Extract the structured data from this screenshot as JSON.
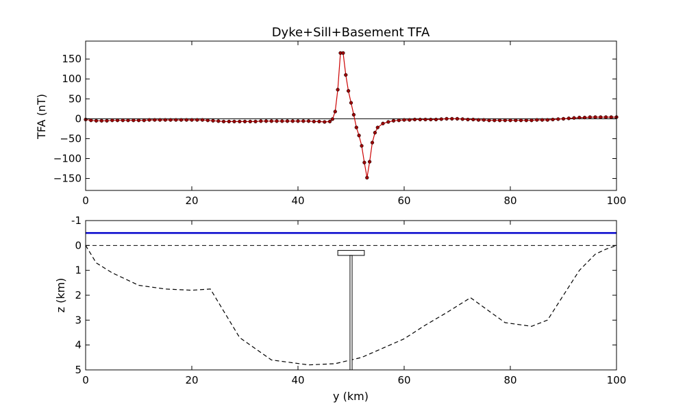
{
  "chart_data": [
    {
      "type": "line",
      "title": "Dyke+Sill+Basement TFA",
      "xlabel": "",
      "ylabel": "TFA (nT)",
      "xlim": [
        0,
        100
      ],
      "ylim": [
        -180,
        195
      ],
      "xticks": [
        0,
        20,
        40,
        60,
        80,
        100
      ],
      "yticks": [
        150,
        100,
        50,
        0,
        -50,
        -100,
        -150
      ],
      "grid": false,
      "series": [
        {
          "color": "#cc0000",
          "marker_color": "#990000",
          "x": [
            0,
            1,
            2,
            3,
            4,
            5,
            6,
            7,
            8,
            9,
            10,
            11,
            12,
            13,
            14,
            15,
            16,
            17,
            18,
            19,
            20,
            21,
            22,
            23,
            24,
            25,
            26,
            27,
            28,
            29,
            30,
            31,
            32,
            33,
            34,
            35,
            36,
            37,
            38,
            39,
            40,
            41,
            42,
            43,
            44,
            45,
            46,
            46.5,
            47,
            47.5,
            48,
            48.5,
            49,
            49.5,
            50,
            50.5,
            51,
            51.5,
            52,
            52.5,
            53,
            53.5,
            54,
            54.5,
            55,
            56,
            57,
            58,
            59,
            60,
            61,
            62,
            63,
            64,
            65,
            66,
            67,
            68,
            69,
            70,
            71,
            72,
            73,
            74,
            75,
            76,
            77,
            78,
            79,
            80,
            81,
            82,
            83,
            84,
            85,
            86,
            87,
            88,
            89,
            90,
            91,
            92,
            93,
            94,
            95,
            96,
            97,
            98,
            99,
            100
          ],
          "y": [
            -2,
            -4,
            -5,
            -5,
            -5,
            -4,
            -4,
            -4,
            -4,
            -4,
            -4,
            -4,
            -3,
            -3,
            -3,
            -3,
            -3,
            -3,
            -3,
            -3,
            -3,
            -3,
            -3,
            -4,
            -5,
            -6,
            -7,
            -7,
            -7,
            -7,
            -7,
            -7,
            -7,
            -6,
            -6,
            -6,
            -6,
            -6,
            -6,
            -6,
            -6,
            -6,
            -6,
            -7,
            -7,
            -8,
            -7,
            -1,
            18,
            73,
            165,
            165,
            110,
            70,
            40,
            10,
            -22,
            -42,
            -68,
            -110,
            -148,
            -108,
            -60,
            -35,
            -22,
            -12,
            -8,
            -5,
            -4,
            -3,
            -3,
            -2,
            -2,
            -2,
            -2,
            -2,
            -1,
            0,
            0,
            0,
            -1,
            -2,
            -2,
            -3,
            -3,
            -4,
            -4,
            -4,
            -4,
            -4,
            -4,
            -4,
            -4,
            -4,
            -3,
            -3,
            -3,
            -2,
            -1,
            0,
            1,
            2,
            3,
            3,
            4,
            4,
            4,
            4,
            4,
            4
          ]
        }
      ],
      "reference_line_y": 0
    },
    {
      "type": "line",
      "title": "",
      "xlabel": "y (km)",
      "ylabel": "z (km)",
      "xlim": [
        0,
        100
      ],
      "ylim": [
        5,
        -1
      ],
      "y_inverted": true,
      "xticks": [
        0,
        20,
        40,
        60,
        80,
        100
      ],
      "yticks": [
        -1,
        0,
        1,
        2,
        3,
        4,
        5
      ],
      "grid": false,
      "observation_height": {
        "z": -0.5,
        "color": "#0000cc"
      },
      "surface_line": {
        "z": 0,
        "style": "dashed"
      },
      "basement": {
        "style": "dashed",
        "x": [
          0,
          2,
          5,
          10,
          15,
          20,
          23.5,
          29,
          35,
          42,
          47,
          52,
          60,
          64,
          68,
          72.5,
          79,
          84,
          87,
          90,
          93,
          96,
          98,
          100
        ],
        "z": [
          0,
          0.7,
          1.1,
          1.6,
          1.75,
          1.8,
          1.75,
          3.7,
          4.6,
          4.8,
          4.75,
          4.5,
          3.75,
          3.2,
          2.7,
          2.1,
          3.1,
          3.25,
          3.0,
          2.0,
          1.0,
          0.35,
          0.15,
          0.0
        ]
      },
      "sill": {
        "x_min": 47.5,
        "x_max": 52.5,
        "z_top": 0.2,
        "z_bottom": 0.4
      },
      "dyke": {
        "x_min": 49.8,
        "x_max": 50.2,
        "z_top": 0.4,
        "z_bottom": 5
      }
    }
  ]
}
